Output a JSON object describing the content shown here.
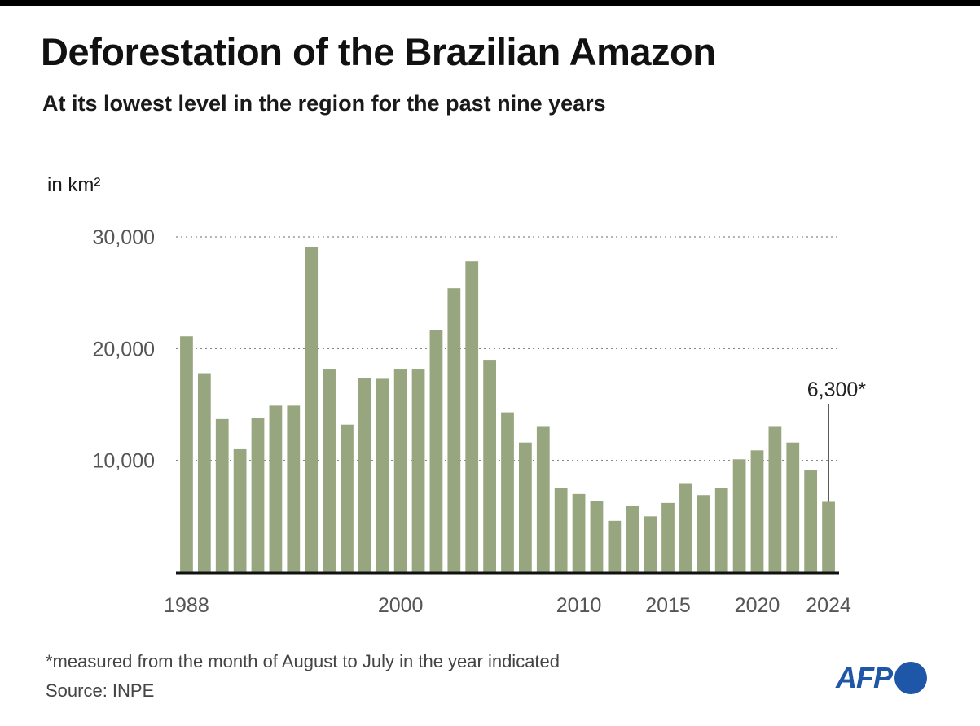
{
  "header": {
    "title": "Deforestation of the Brazilian Amazon",
    "subtitle": "At its lowest level in the region for the past nine years",
    "unit_label": "in km²"
  },
  "footer": {
    "note": "*measured from the month of August to July in the year indicated",
    "source": "Source: INPE",
    "logo_text": "AFP"
  },
  "colors": {
    "bar": "#97a67e",
    "grid": "#888888",
    "axis": "#111111",
    "logo": "#1e56a8"
  },
  "chart_data": {
    "type": "bar",
    "title": "Deforestation of the Brazilian Amazon",
    "subtitle": "At its lowest level in the region for the past nine years",
    "xlabel": "",
    "ylabel": "in km²",
    "ylim": [
      0,
      30000
    ],
    "yticks": [
      10000,
      20000,
      30000
    ],
    "ytick_labels": [
      "10,000",
      "20,000",
      "30,000"
    ],
    "xtick_labels": [
      {
        "year": 1988,
        "label": "1988"
      },
      {
        "year": 2000,
        "label": "2000"
      },
      {
        "year": 2010,
        "label": "2010"
      },
      {
        "year": 2015,
        "label": "2015"
      },
      {
        "year": 2020,
        "label": "2020"
      },
      {
        "year": 2024,
        "label": "2024"
      }
    ],
    "grid": true,
    "categories": [
      1988,
      1989,
      1990,
      1991,
      1992,
      1993,
      1994,
      1995,
      1996,
      1997,
      1998,
      1999,
      2000,
      2001,
      2002,
      2003,
      2004,
      2005,
      2006,
      2007,
      2008,
      2009,
      2010,
      2011,
      2012,
      2013,
      2014,
      2015,
      2016,
      2017,
      2018,
      2019,
      2020,
      2021,
      2022,
      2023,
      2024
    ],
    "values": [
      21100,
      17800,
      13700,
      11000,
      13800,
      14900,
      14900,
      29100,
      18200,
      13200,
      17400,
      17300,
      18200,
      18200,
      21700,
      25400,
      27800,
      19000,
      14300,
      11600,
      13000,
      7500,
      7000,
      6400,
      4600,
      5900,
      5000,
      6200,
      7900,
      6900,
      7500,
      10100,
      10900,
      13000,
      11600,
      9100,
      6300
    ],
    "annotation": {
      "year": 2024,
      "label": "6,300*"
    }
  }
}
